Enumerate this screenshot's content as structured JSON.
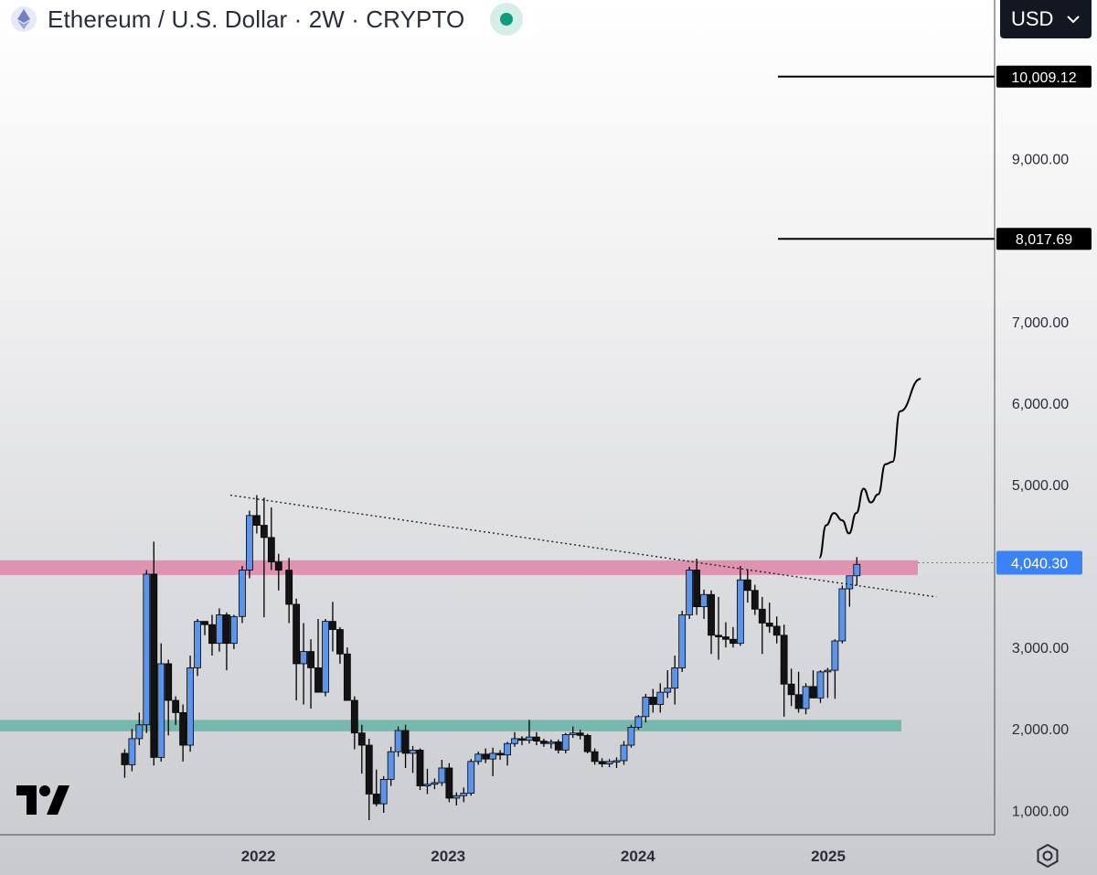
{
  "header": {
    "title": "Ethereum / U.S. Dollar · 2W · CRYPTO"
  },
  "currency": {
    "label": "USD",
    "icon": "chevron-down-icon"
  },
  "colors": {
    "candle_up_fill": "#5b94e8",
    "candle_down_fill": "#131313",
    "resistance_zone": "#e07aa0",
    "support_zone": "#5fb2a2",
    "price_label_bg": "#3b82f6"
  },
  "chart_data": {
    "type": "candlestick",
    "title": "Ethereum / U.S. Dollar · 2W · CRYPTO",
    "ylim": [
      700,
      10950
    ],
    "y_ticks": [
      "1,000.00",
      "2,000.00",
      "3,000.00",
      "5,000.00",
      "6,000.00",
      "7,000.00",
      "9,000.00"
    ],
    "x_ticks": [
      "2022",
      "2023",
      "2024",
      "2025"
    ],
    "current_price": {
      "value": 4040.3,
      "label": "4,040.30"
    },
    "target_levels": [
      {
        "value": 10009.12,
        "label": "10,009.12"
      },
      {
        "value": 8017.69,
        "label": "8,017.69"
      }
    ],
    "zones": [
      {
        "type": "resistance",
        "from": 3890,
        "to": 4070
      },
      {
        "type": "support",
        "from": 1970,
        "to": 2110
      }
    ],
    "trendline": {
      "start": [
        "2021-11-08",
        4870
      ],
      "end": [
        "2025-07-28",
        3620
      ],
      "style": "dotted"
    },
    "projection": [
      [
        "2024-12-15",
        4100
      ],
      [
        "2024-12-28",
        4500
      ],
      [
        "2025-01-12",
        4650
      ],
      [
        "2025-01-28",
        4560
      ],
      [
        "2025-02-10",
        4400
      ],
      [
        "2025-02-24",
        4650
      ],
      [
        "2025-03-10",
        4950
      ],
      [
        "2025-03-24",
        4780
      ],
      [
        "2025-04-07",
        4880
      ],
      [
        "2025-04-21",
        5250
      ],
      [
        "2025-05-05",
        5280
      ],
      [
        "2025-05-19",
        5900
      ],
      [
        "2025-06-28",
        6300
      ]
    ],
    "candles": [
      [
        "2021-04-19",
        1700,
        1750,
        1400,
        1560
      ],
      [
        "2021-05-03",
        1560,
        2000,
        1480,
        1880
      ],
      [
        "2021-05-17",
        1880,
        2200,
        1800,
        2050
      ],
      [
        "2021-05-31",
        2050,
        3950,
        1950,
        3900
      ],
      [
        "2021-06-14",
        3900,
        4300,
        1550,
        1650
      ],
      [
        "2021-06-28",
        1650,
        3050,
        1600,
        2800
      ],
      [
        "2021-07-12",
        2800,
        2850,
        1920,
        2350
      ],
      [
        "2021-07-26",
        2350,
        2400,
        2050,
        2200
      ],
      [
        "2021-08-09",
        2200,
        2300,
        1600,
        1800
      ],
      [
        "2021-08-23",
        1800,
        2900,
        1720,
        2750
      ],
      [
        "2021-09-06",
        2750,
        3350,
        2650,
        3320
      ],
      [
        "2021-09-20",
        3320,
        3320,
        3150,
        3280
      ],
      [
        "2021-10-04",
        3280,
        3400,
        2900,
        3050
      ],
      [
        "2021-10-18",
        3050,
        3480,
        2950,
        3400
      ],
      [
        "2021-11-01",
        3400,
        3430,
        2720,
        3050
      ],
      [
        "2021-11-15",
        3050,
        3400,
        2980,
        3380
      ],
      [
        "2021-12-01",
        3380,
        4000,
        3300,
        3950
      ],
      [
        "2021-12-15",
        3950,
        4680,
        3850,
        4620
      ],
      [
        "2021-12-29",
        4620,
        4870,
        4400,
        4500
      ],
      [
        "2022-01-12",
        4500,
        4840,
        3370,
        4350
      ],
      [
        "2022-01-26",
        4350,
        4720,
        3950,
        4050
      ],
      [
        "2022-02-09",
        4050,
        4150,
        3700,
        3950
      ],
      [
        "2022-03-01",
        3950,
        4100,
        3300,
        3530
      ],
      [
        "2022-03-15",
        3530,
        3600,
        2350,
        2800
      ],
      [
        "2022-03-29",
        2800,
        3300,
        2300,
        2950
      ],
      [
        "2022-04-12",
        2950,
        3100,
        2250,
        2750
      ],
      [
        "2022-04-26",
        2750,
        3350,
        2470,
        2450
      ],
      [
        "2022-05-10",
        2450,
        3350,
        2400,
        3320
      ],
      [
        "2022-05-24",
        3320,
        3560,
        2950,
        3220
      ],
      [
        "2022-06-07",
        3220,
        3250,
        2800,
        2920
      ],
      [
        "2022-06-21",
        2920,
        3000,
        2350,
        2350
      ],
      [
        "2022-07-05",
        2350,
        2400,
        1750,
        1950
      ],
      [
        "2022-07-19",
        1950,
        2050,
        1450,
        1800
      ],
      [
        "2022-08-02",
        1800,
        1880,
        880,
        1200
      ],
      [
        "2022-08-16",
        1200,
        1500,
        1050,
        1080
      ],
      [
        "2022-08-30",
        1080,
        1420,
        970,
        1380
      ],
      [
        "2022-09-13",
        1380,
        1780,
        1300,
        1720
      ],
      [
        "2022-09-27",
        1720,
        2030,
        1660,
        1980
      ],
      [
        "2022-10-11",
        1980,
        2050,
        1520,
        1700
      ],
      [
        "2022-10-25",
        1700,
        1790,
        1460,
        1740
      ],
      [
        "2022-11-08",
        1740,
        1760,
        1250,
        1300
      ],
      [
        "2022-11-22",
        1300,
        1510,
        1200,
        1320
      ],
      [
        "2022-12-06",
        1320,
        1390,
        1260,
        1340
      ],
      [
        "2022-12-20",
        1340,
        1620,
        1300,
        1520
      ],
      [
        "2023-01-03",
        1520,
        1580,
        1100,
        1150
      ],
      [
        "2023-01-17",
        1150,
        1220,
        1060,
        1180
      ],
      [
        "2023-01-31",
        1180,
        1280,
        1100,
        1210
      ],
      [
        "2023-02-14",
        1210,
        1630,
        1180,
        1600
      ],
      [
        "2023-02-28",
        1600,
        1720,
        1560,
        1690
      ],
      [
        "2023-03-14",
        1690,
        1760,
        1580,
        1630
      ],
      [
        "2023-03-28",
        1630,
        1770,
        1420,
        1700
      ],
      [
        "2023-04-11",
        1700,
        1740,
        1620,
        1680
      ],
      [
        "2023-04-25",
        1680,
        1840,
        1550,
        1820
      ],
      [
        "2023-05-09",
        1820,
        1960,
        1780,
        1880
      ],
      [
        "2023-05-23",
        1880,
        1910,
        1800,
        1860
      ],
      [
        "2023-06-06",
        1860,
        2110,
        1820,
        1900
      ],
      [
        "2023-06-20",
        1900,
        1960,
        1800,
        1850
      ],
      [
        "2023-07-04",
        1850,
        1880,
        1780,
        1820
      ],
      [
        "2023-07-18",
        1820,
        1870,
        1760,
        1840
      ],
      [
        "2023-08-01",
        1840,
        1870,
        1700,
        1740
      ],
      [
        "2023-08-15",
        1740,
        1950,
        1700,
        1930
      ],
      [
        "2023-08-29",
        1930,
        2030,
        1890,
        1950
      ],
      [
        "2023-09-12",
        1950,
        1990,
        1870,
        1920
      ],
      [
        "2023-09-26",
        1920,
        1940,
        1700,
        1720
      ],
      [
        "2023-10-10",
        1720,
        1760,
        1560,
        1600
      ],
      [
        "2023-10-24",
        1600,
        1640,
        1530,
        1570
      ],
      [
        "2023-11-07",
        1570,
        1630,
        1530,
        1600
      ],
      [
        "2023-11-21",
        1600,
        1650,
        1520,
        1610
      ],
      [
        "2023-12-05",
        1610,
        1850,
        1560,
        1800
      ],
      [
        "2023-12-19",
        1800,
        2050,
        1770,
        2020
      ],
      [
        "2024-01-02",
        2020,
        2170,
        1990,
        2150
      ],
      [
        "2024-01-16",
        2150,
        2430,
        2080,
        2390
      ],
      [
        "2024-01-30",
        2390,
        2490,
        2200,
        2300
      ],
      [
        "2024-02-13",
        2300,
        2560,
        2200,
        2450
      ],
      [
        "2024-02-27",
        2450,
        2720,
        2380,
        2500
      ],
      [
        "2024-03-12",
        2500,
        2900,
        2300,
        2750
      ],
      [
        "2024-03-26",
        2750,
        3450,
        2700,
        3400
      ],
      [
        "2024-04-09",
        3400,
        3990,
        3350,
        3950
      ],
      [
        "2024-04-23",
        3950,
        4090,
        3400,
        3500
      ],
      [
        "2024-05-07",
        3500,
        3710,
        3350,
        3650
      ],
      [
        "2024-05-21",
        3650,
        3700,
        2920,
        3150
      ],
      [
        "2024-06-04",
        3150,
        3620,
        2850,
        3130
      ],
      [
        "2024-06-18",
        3130,
        3310,
        3000,
        3100
      ],
      [
        "2024-07-02",
        3100,
        3250,
        3000,
        3050
      ],
      [
        "2024-07-16",
        3050,
        4000,
        3020,
        3830
      ],
      [
        "2024-07-30",
        3830,
        3960,
        3550,
        3700
      ],
      [
        "2024-08-13",
        3700,
        3770,
        3400,
        3470
      ],
      [
        "2024-08-27",
        3470,
        3620,
        2920,
        3300
      ],
      [
        "2024-09-10",
        3300,
        3550,
        3180,
        3260
      ],
      [
        "2024-09-24",
        3260,
        3380,
        3050,
        3150
      ],
      [
        "2024-10-08",
        3150,
        3280,
        2150,
        2550
      ],
      [
        "2024-10-22",
        2550,
        2740,
        2280,
        2420
      ],
      [
        "2024-11-05",
        2420,
        2700,
        2200,
        2250
      ],
      [
        "2024-11-19",
        2250,
        2560,
        2180,
        2520
      ],
      [
        "2024-12-03",
        2520,
        2720,
        2400,
        2380
      ],
      [
        "2024-12-17",
        2380,
        2720,
        2320,
        2700
      ],
      [
        "2024-12-31",
        2700,
        2750,
        2380,
        2720
      ],
      [
        "2025-01-14",
        2720,
        3100,
        2370,
        3080
      ],
      [
        "2025-01-28",
        3080,
        3760,
        3050,
        3720
      ],
      [
        "2025-02-11",
        3720,
        3860,
        3500,
        3880
      ],
      [
        "2025-02-25",
        3880,
        4110,
        3760,
        4020
      ]
    ]
  }
}
